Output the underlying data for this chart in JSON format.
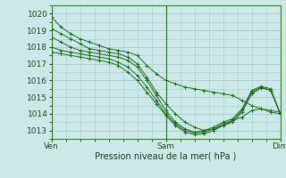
{
  "bg_color": "#cce8e8",
  "grid_color": "#aacccc",
  "line_color": "#1a6b1a",
  "marker": "+",
  "xlabel": "Pression niveau de la mer( hPa )",
  "xtick_labels": [
    "Ven",
    "Sam",
    "Dim"
  ],
  "ylim": [
    1012.5,
    1020.5
  ],
  "yticks": [
    1013,
    1014,
    1015,
    1016,
    1017,
    1018,
    1019,
    1020
  ],
  "series": [
    {
      "x": [
        0,
        2,
        4,
        6,
        8,
        10,
        12,
        14,
        16,
        18,
        20,
        22,
        24,
        26,
        28,
        30,
        32,
        34,
        36,
        38,
        40,
        42,
        44,
        46,
        48
      ],
      "y": [
        1019.8,
        1019.2,
        1018.8,
        1018.5,
        1018.3,
        1018.1,
        1017.9,
        1017.8,
        1017.7,
        1017.5,
        1016.9,
        1016.4,
        1016.0,
        1015.8,
        1015.6,
        1015.5,
        1015.4,
        1015.3,
        1015.2,
        1015.1,
        1014.8,
        1014.5,
        1014.3,
        1014.1,
        1014.0
      ]
    },
    {
      "x": [
        0,
        2,
        4,
        6,
        8,
        10,
        12,
        14,
        16,
        18,
        20,
        22,
        24,
        26,
        28,
        30,
        32,
        34,
        36,
        38,
        40,
        42,
        44,
        46,
        48
      ],
      "y": [
        1019.1,
        1018.8,
        1018.5,
        1018.2,
        1017.9,
        1017.8,
        1017.7,
        1017.6,
        1017.4,
        1017.0,
        1016.2,
        1015.3,
        1014.6,
        1014.0,
        1013.5,
        1013.2,
        1013.0,
        1013.1,
        1013.3,
        1013.6,
        1013.8,
        1014.2,
        1014.3,
        1014.2,
        1014.1
      ]
    },
    {
      "x": [
        0,
        2,
        4,
        6,
        8,
        10,
        12,
        14,
        16,
        18,
        20,
        22,
        24,
        26,
        28,
        30,
        32,
        34,
        36,
        38,
        40,
        42,
        44,
        46,
        48
      ],
      "y": [
        1018.6,
        1018.3,
        1018.0,
        1017.8,
        1017.7,
        1017.6,
        1017.5,
        1017.4,
        1017.2,
        1016.8,
        1016.0,
        1015.1,
        1014.2,
        1013.5,
        1013.1,
        1012.9,
        1013.0,
        1013.2,
        1013.5,
        1013.7,
        1014.3,
        1015.4,
        1015.65,
        1015.5,
        1014.0
      ]
    },
    {
      "x": [
        0,
        2,
        4,
        6,
        8,
        10,
        12,
        14,
        16,
        18,
        20,
        22,
        24,
        26,
        28,
        30,
        32,
        34,
        36,
        38,
        40,
        42,
        44,
        46,
        48
      ],
      "y": [
        1018.0,
        1017.8,
        1017.7,
        1017.6,
        1017.5,
        1017.4,
        1017.3,
        1017.1,
        1016.8,
        1016.3,
        1015.6,
        1014.8,
        1014.0,
        1013.4,
        1013.0,
        1012.85,
        1012.9,
        1013.1,
        1013.4,
        1013.6,
        1014.2,
        1015.3,
        1015.6,
        1015.4,
        1014.0
      ]
    },
    {
      "x": [
        0,
        2,
        4,
        6,
        8,
        10,
        12,
        14,
        16,
        18,
        20,
        22,
        24,
        26,
        28,
        30,
        32,
        34,
        36,
        38,
        40,
        42,
        44,
        46,
        48
      ],
      "y": [
        1017.7,
        1017.6,
        1017.5,
        1017.4,
        1017.3,
        1017.2,
        1017.1,
        1016.9,
        1016.5,
        1016.0,
        1015.3,
        1014.6,
        1013.9,
        1013.3,
        1012.9,
        1012.75,
        1012.8,
        1013.0,
        1013.3,
        1013.5,
        1014.1,
        1015.2,
        1015.55,
        1015.4,
        1014.0
      ]
    }
  ],
  "xtick_positions": [
    0,
    24,
    48
  ],
  "vline_positions": [
    24,
    48
  ],
  "figsize": [
    3.2,
    2.0
  ],
  "dpi": 100
}
